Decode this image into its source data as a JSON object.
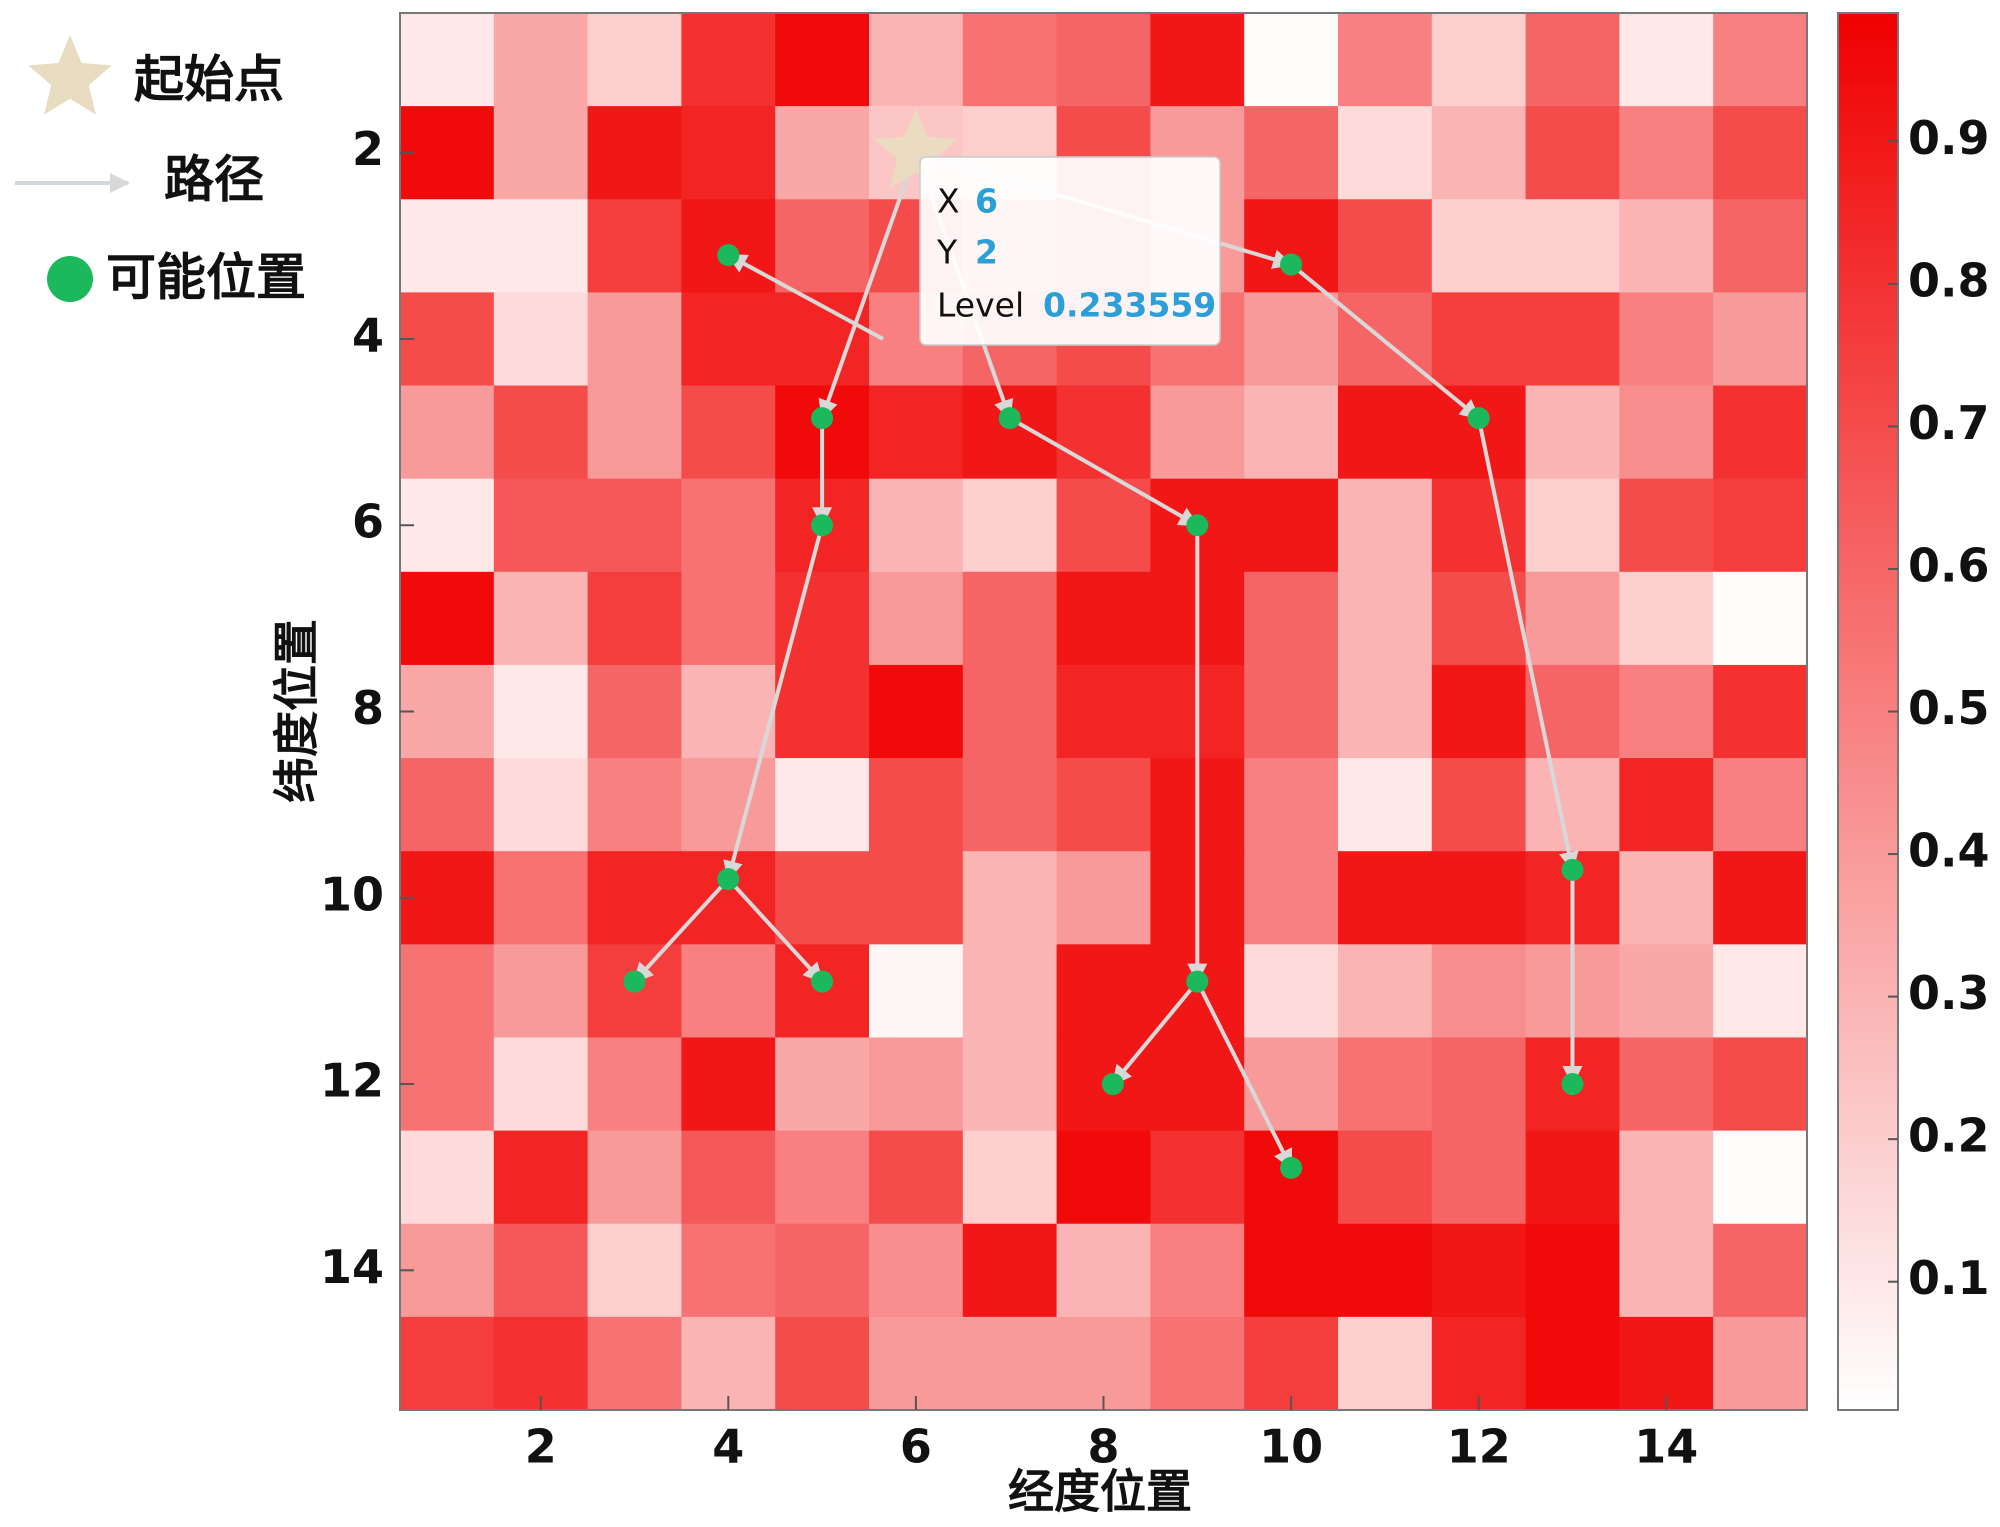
{
  "chart_data": {
    "type": "heatmap",
    "xlabel": "经度位置",
    "ylabel": "纬度位置",
    "xlim": [
      0.5,
      15.5
    ],
    "ylim": [
      0.5,
      15.5
    ],
    "y_reversed": true,
    "xticks": [
      2,
      4,
      6,
      8,
      10,
      12,
      14
    ],
    "yticks": [
      2,
      4,
      6,
      8,
      10,
      12,
      14
    ],
    "clim": [
      0.01,
      0.99
    ],
    "cticks": [
      0.1,
      0.2,
      0.3,
      0.4,
      0.5,
      0.6,
      0.7,
      0.8,
      0.9
    ],
    "colormap": [
      "#ffffff",
      "#f00000"
    ],
    "matrix": [
      [
        0.1,
        0.35,
        0.2,
        0.8,
        0.95,
        0.3,
        0.55,
        0.6,
        0.9,
        0.02,
        0.5,
        0.2,
        0.6,
        0.1,
        0.5
      ],
      [
        0.95,
        0.35,
        0.9,
        0.85,
        0.35,
        0.23,
        0.2,
        0.7,
        0.4,
        0.6,
        0.15,
        0.3,
        0.7,
        0.5,
        0.7
      ],
      [
        0.1,
        0.1,
        0.75,
        0.9,
        0.6,
        0.7,
        0.5,
        0.7,
        0.4,
        0.9,
        0.7,
        0.2,
        0.2,
        0.3,
        0.6
      ],
      [
        0.7,
        0.15,
        0.4,
        0.85,
        0.85,
        0.5,
        0.6,
        0.7,
        0.55,
        0.4,
        0.6,
        0.75,
        0.75,
        0.5,
        0.4
      ],
      [
        0.4,
        0.7,
        0.4,
        0.7,
        0.95,
        0.85,
        0.9,
        0.8,
        0.4,
        0.3,
        0.9,
        0.9,
        0.3,
        0.45,
        0.8
      ],
      [
        0.1,
        0.65,
        0.65,
        0.55,
        0.85,
        0.3,
        0.2,
        0.7,
        0.9,
        0.9,
        0.3,
        0.8,
        0.2,
        0.7,
        0.75
      ],
      [
        0.95,
        0.3,
        0.75,
        0.55,
        0.8,
        0.4,
        0.6,
        0.9,
        0.9,
        0.6,
        0.3,
        0.7,
        0.4,
        0.2,
        0.02
      ],
      [
        0.35,
        0.1,
        0.6,
        0.3,
        0.8,
        0.95,
        0.6,
        0.85,
        0.85,
        0.6,
        0.3,
        0.9,
        0.6,
        0.5,
        0.8
      ],
      [
        0.6,
        0.15,
        0.5,
        0.4,
        0.1,
        0.7,
        0.6,
        0.7,
        0.9,
        0.5,
        0.1,
        0.7,
        0.3,
        0.85,
        0.5
      ],
      [
        0.9,
        0.55,
        0.85,
        0.85,
        0.7,
        0.7,
        0.3,
        0.4,
        0.9,
        0.5,
        0.9,
        0.9,
        0.85,
        0.3,
        0.9
      ],
      [
        0.55,
        0.4,
        0.75,
        0.5,
        0.85,
        0.05,
        0.3,
        0.9,
        0.9,
        0.15,
        0.3,
        0.45,
        0.4,
        0.35,
        0.1
      ],
      [
        0.55,
        0.15,
        0.5,
        0.9,
        0.35,
        0.4,
        0.3,
        0.9,
        0.9,
        0.4,
        0.55,
        0.6,
        0.85,
        0.6,
        0.7
      ],
      [
        0.15,
        0.85,
        0.4,
        0.65,
        0.5,
        0.7,
        0.2,
        0.95,
        0.8,
        0.95,
        0.7,
        0.6,
        0.9,
        0.3,
        0.02
      ],
      [
        0.4,
        0.65,
        0.2,
        0.55,
        0.6,
        0.45,
        0.9,
        0.3,
        0.5,
        0.95,
        0.95,
        0.9,
        0.95,
        0.3,
        0.6
      ],
      [
        0.75,
        0.8,
        0.55,
        0.3,
        0.7,
        0.4,
        0.4,
        0.4,
        0.55,
        0.75,
        0.2,
        0.85,
        0.95,
        0.9,
        0.4
      ]
    ],
    "start": {
      "name": "起始点",
      "x": 6,
      "y": 2,
      "color": "#e8dcc0"
    },
    "path": {
      "name": "路径",
      "color": "#d8d8d8",
      "segments": [
        {
          "from": [
            6,
            2
          ],
          "to": [
            5,
            4.85
          ]
        },
        {
          "from": [
            5.65,
            4
          ],
          "to": [
            4,
            3.1
          ]
        },
        {
          "from": [
            5,
            4.85
          ],
          "to": [
            5,
            6
          ]
        },
        {
          "from": [
            5,
            6
          ],
          "to": [
            4,
            9.8
          ]
        },
        {
          "from": [
            4,
            9.8
          ],
          "to": [
            3,
            10.9
          ]
        },
        {
          "from": [
            4,
            9.8
          ],
          "to": [
            5,
            10.9
          ]
        },
        {
          "from": [
            6,
            2
          ],
          "to": [
            7,
            4.85
          ]
        },
        {
          "from": [
            7,
            4.85
          ],
          "to": [
            9,
            6
          ]
        },
        {
          "from": [
            9,
            6
          ],
          "to": [
            9,
            10.9
          ]
        },
        {
          "from": [
            9,
            10.9
          ],
          "to": [
            8.1,
            12
          ]
        },
        {
          "from": [
            9,
            10.9
          ],
          "to": [
            10,
            12.9
          ]
        },
        {
          "from": [
            6,
            2
          ],
          "to": [
            10,
            3.2
          ]
        },
        {
          "from": [
            10,
            3.2
          ],
          "to": [
            12,
            4.85
          ]
        },
        {
          "from": [
            12,
            4.85
          ],
          "to": [
            13,
            9.7
          ]
        },
        {
          "from": [
            13,
            9.7
          ],
          "to": [
            13,
            12
          ]
        }
      ]
    },
    "points": {
      "name": "可能位置",
      "color": "#1cb85c",
      "x": [
        4,
        5,
        5,
        4,
        3,
        5,
        7,
        9,
        9,
        8.1,
        10,
        10,
        12,
        13,
        13
      ],
      "y": [
        3.1,
        4.85,
        6,
        9.8,
        10.9,
        10.9,
        4.85,
        6,
        10.9,
        12,
        12.9,
        3.2,
        4.85,
        9.7,
        12
      ]
    },
    "tooltip": {
      "x_label": "X",
      "x": 6,
      "y_label": "Y",
      "y": 2,
      "level_label": "Level",
      "level": 0.233559
    }
  }
}
